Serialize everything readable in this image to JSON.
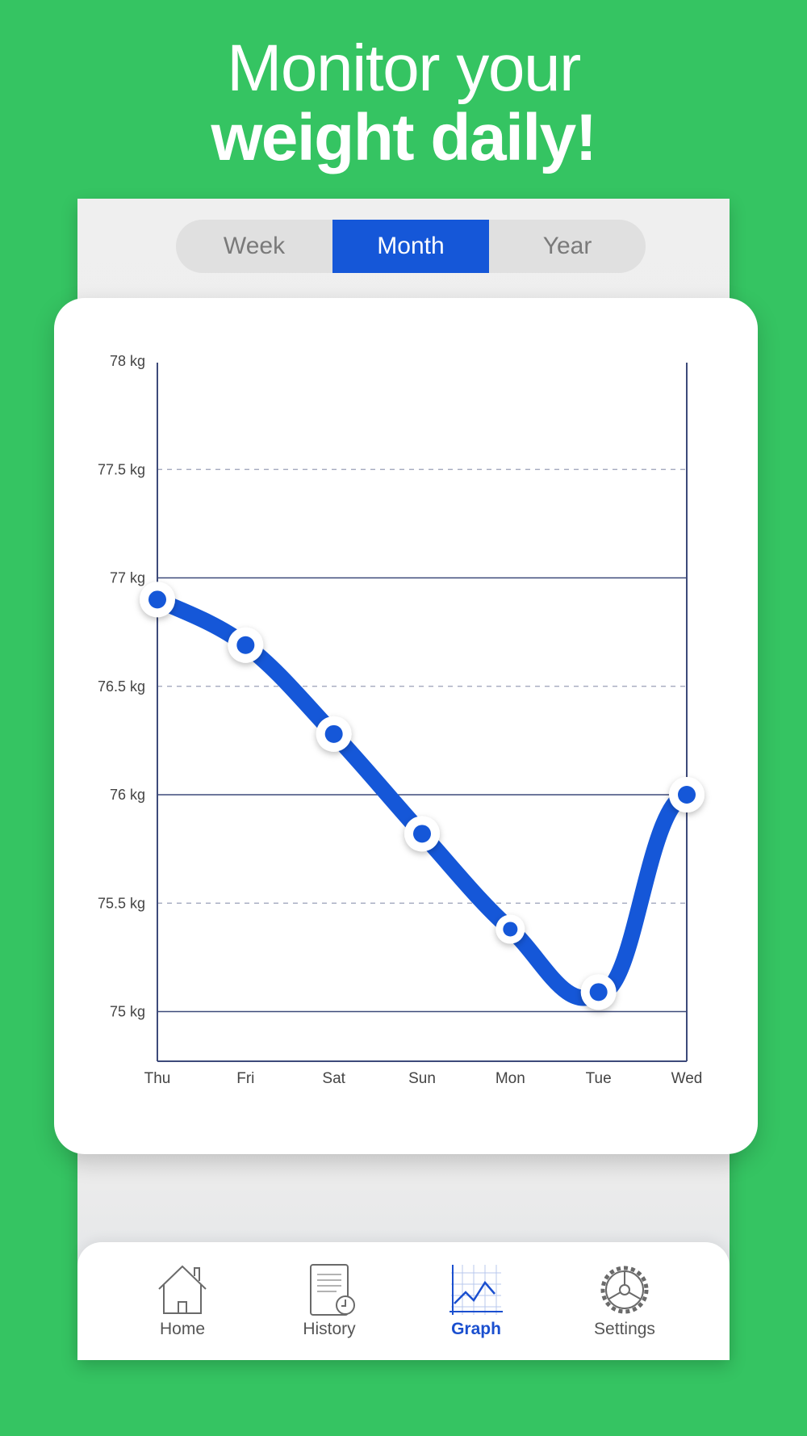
{
  "headline": {
    "line1": "Monitor your",
    "line2": "weight daily!"
  },
  "range_selector": {
    "options": [
      "Week",
      "Month",
      "Year"
    ],
    "selected": "Month"
  },
  "tabs": [
    {
      "label": "Home",
      "icon": "home-icon",
      "active": false
    },
    {
      "label": "History",
      "icon": "history-icon",
      "active": false
    },
    {
      "label": "Graph",
      "icon": "graph-icon",
      "active": true
    },
    {
      "label": "Settings",
      "icon": "settings-icon",
      "active": false
    }
  ],
  "colors": {
    "background": "#35c462",
    "accent": "#1557d8",
    "axis": "#3d4a7a"
  },
  "chart_data": {
    "type": "line",
    "categories": [
      "Thu",
      "Fri",
      "Sat",
      "Sun",
      "Mon",
      "Tue",
      "Wed"
    ],
    "series": [
      {
        "values": [
          76.9,
          76.69,
          76.28,
          75.82,
          75.38,
          75.09,
          76.0
        ]
      }
    ],
    "y_ticks": [
      "78 kg",
      "77.5 kg",
      "77 kg",
      "76.5 kg",
      "76 kg",
      "75.5 kg",
      "75 kg"
    ],
    "y_tick_values": [
      78,
      77.5,
      77,
      76.5,
      76,
      75.5,
      75
    ],
    "ylim": [
      74.77,
      78
    ],
    "unit": "kg",
    "grid": "solid on whole kg, dashed on half kg"
  }
}
